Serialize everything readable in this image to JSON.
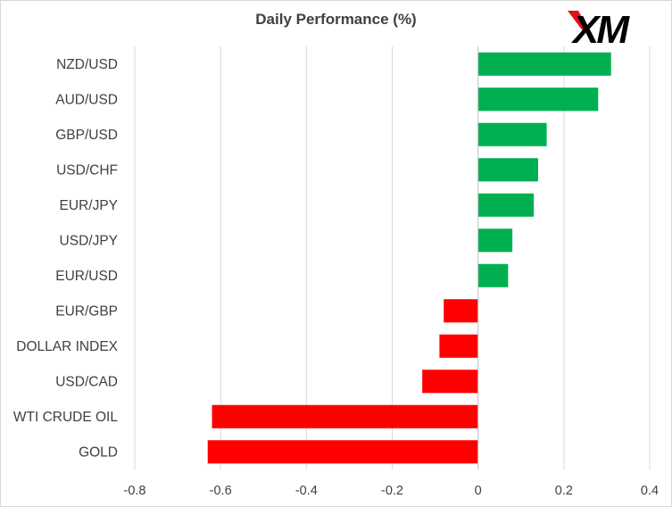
{
  "chart_data": {
    "type": "bar",
    "orientation": "horizontal",
    "title": "Daily Performance  (%)",
    "categories": [
      "NZD/USD",
      "AUD/USD",
      "GBP/USD",
      "USD/CHF",
      "EUR/JPY",
      "USD/JPY",
      "EUR/USD",
      "EUR/GBP",
      "DOLLAR INDEX",
      "USD/CAD",
      "WTI CRUDE OIL",
      "GOLD"
    ],
    "values": [
      0.31,
      0.28,
      0.16,
      0.14,
      0.13,
      0.08,
      0.07,
      -0.08,
      -0.09,
      -0.13,
      -0.62,
      -0.63
    ],
    "xlim": [
      -0.8,
      0.4
    ],
    "xticks": [
      -0.8,
      -0.6,
      -0.4,
      -0.2,
      0,
      0.2,
      0.4
    ],
    "xtick_labels": [
      "-0.8",
      "-0.6",
      "-0.4",
      "-0.2",
      "0",
      "0.2",
      "0.4"
    ],
    "grid": true,
    "colors": {
      "positive": "#00b050",
      "negative": "#ff0000",
      "gridline": "#d9d9d9",
      "axis": "#bfbfbf",
      "text": "#404040"
    }
  },
  "logo": {
    "text": "XM",
    "colors": {
      "main": "#000000",
      "accent": "#e1111b"
    }
  }
}
